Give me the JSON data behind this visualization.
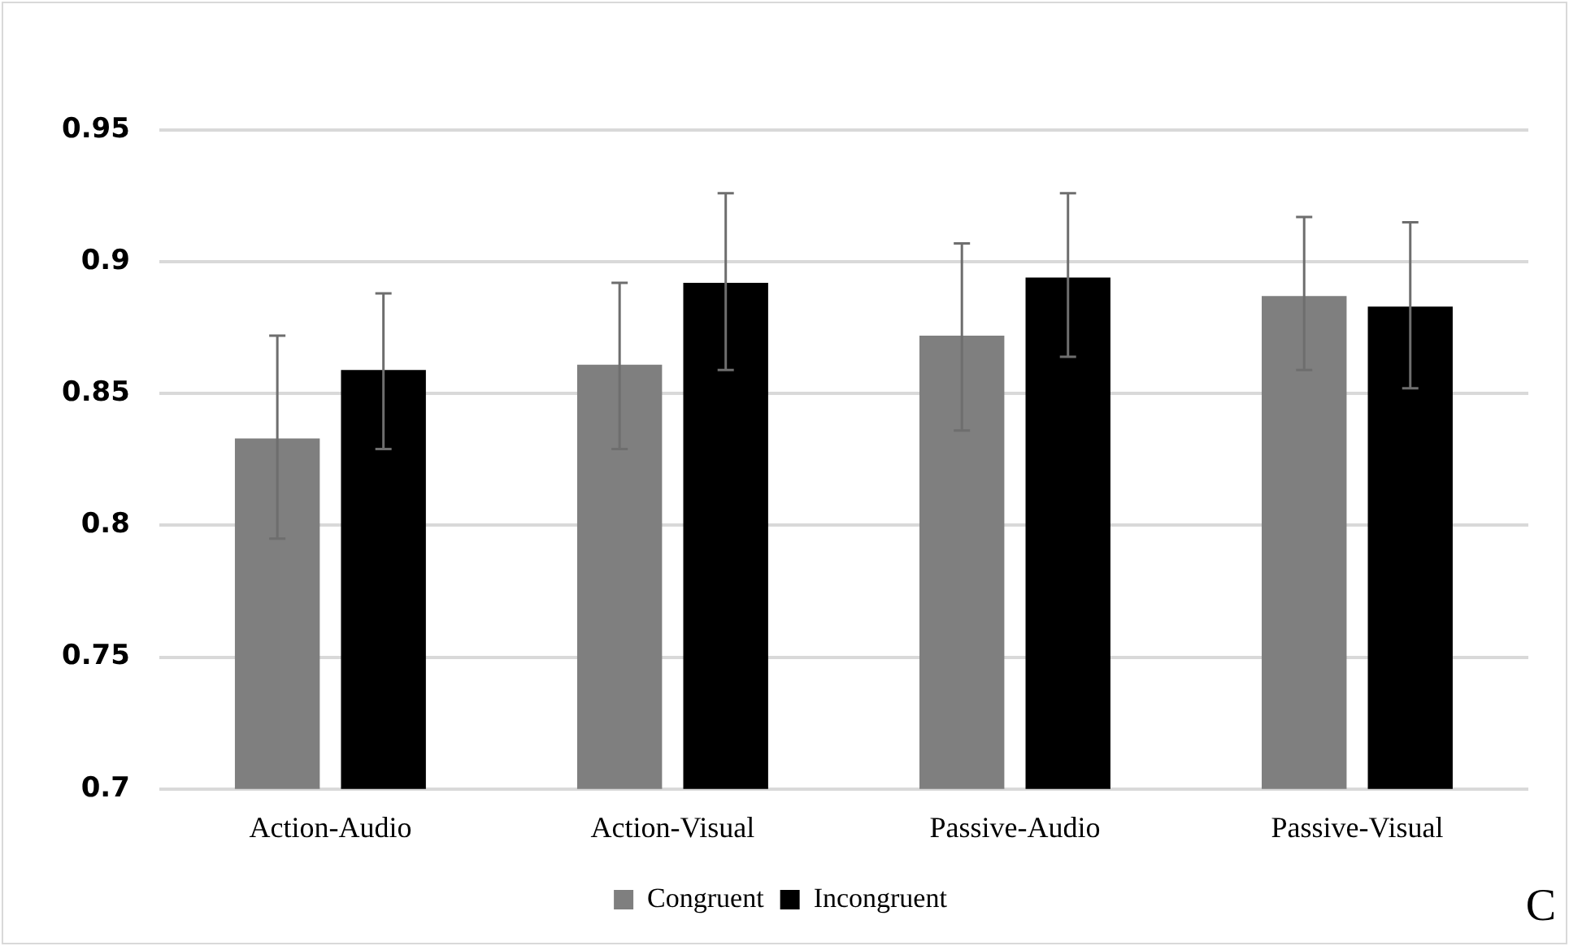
{
  "chart_data": {
    "type": "bar",
    "categories": [
      "Action-Audio",
      "Action-Visual",
      "Passive-Audio",
      "Passive-Visual"
    ],
    "series": [
      {
        "name": "Congruent",
        "color": "#7f7f7f",
        "values": [
          0.833,
          0.861,
          0.872,
          0.887
        ],
        "errors": [
          [
            0.795,
            0.872
          ],
          [
            0.829,
            0.892
          ],
          [
            0.836,
            0.907
          ],
          [
            0.859,
            0.917
          ]
        ]
      },
      {
        "name": "Incongruent",
        "color": "#000000",
        "values": [
          0.859,
          0.892,
          0.894,
          0.883
        ],
        "errors": [
          [
            0.829,
            0.888
          ],
          [
            0.859,
            0.926
          ],
          [
            0.864,
            0.926
          ],
          [
            0.852,
            0.915
          ]
        ]
      }
    ],
    "ylim": [
      0.7,
      0.95
    ],
    "yticks": [
      0.7,
      0.75,
      0.8,
      0.85,
      0.9,
      0.95
    ],
    "grid": "y",
    "legend": "bottom",
    "annotations": [
      "C"
    ]
  }
}
